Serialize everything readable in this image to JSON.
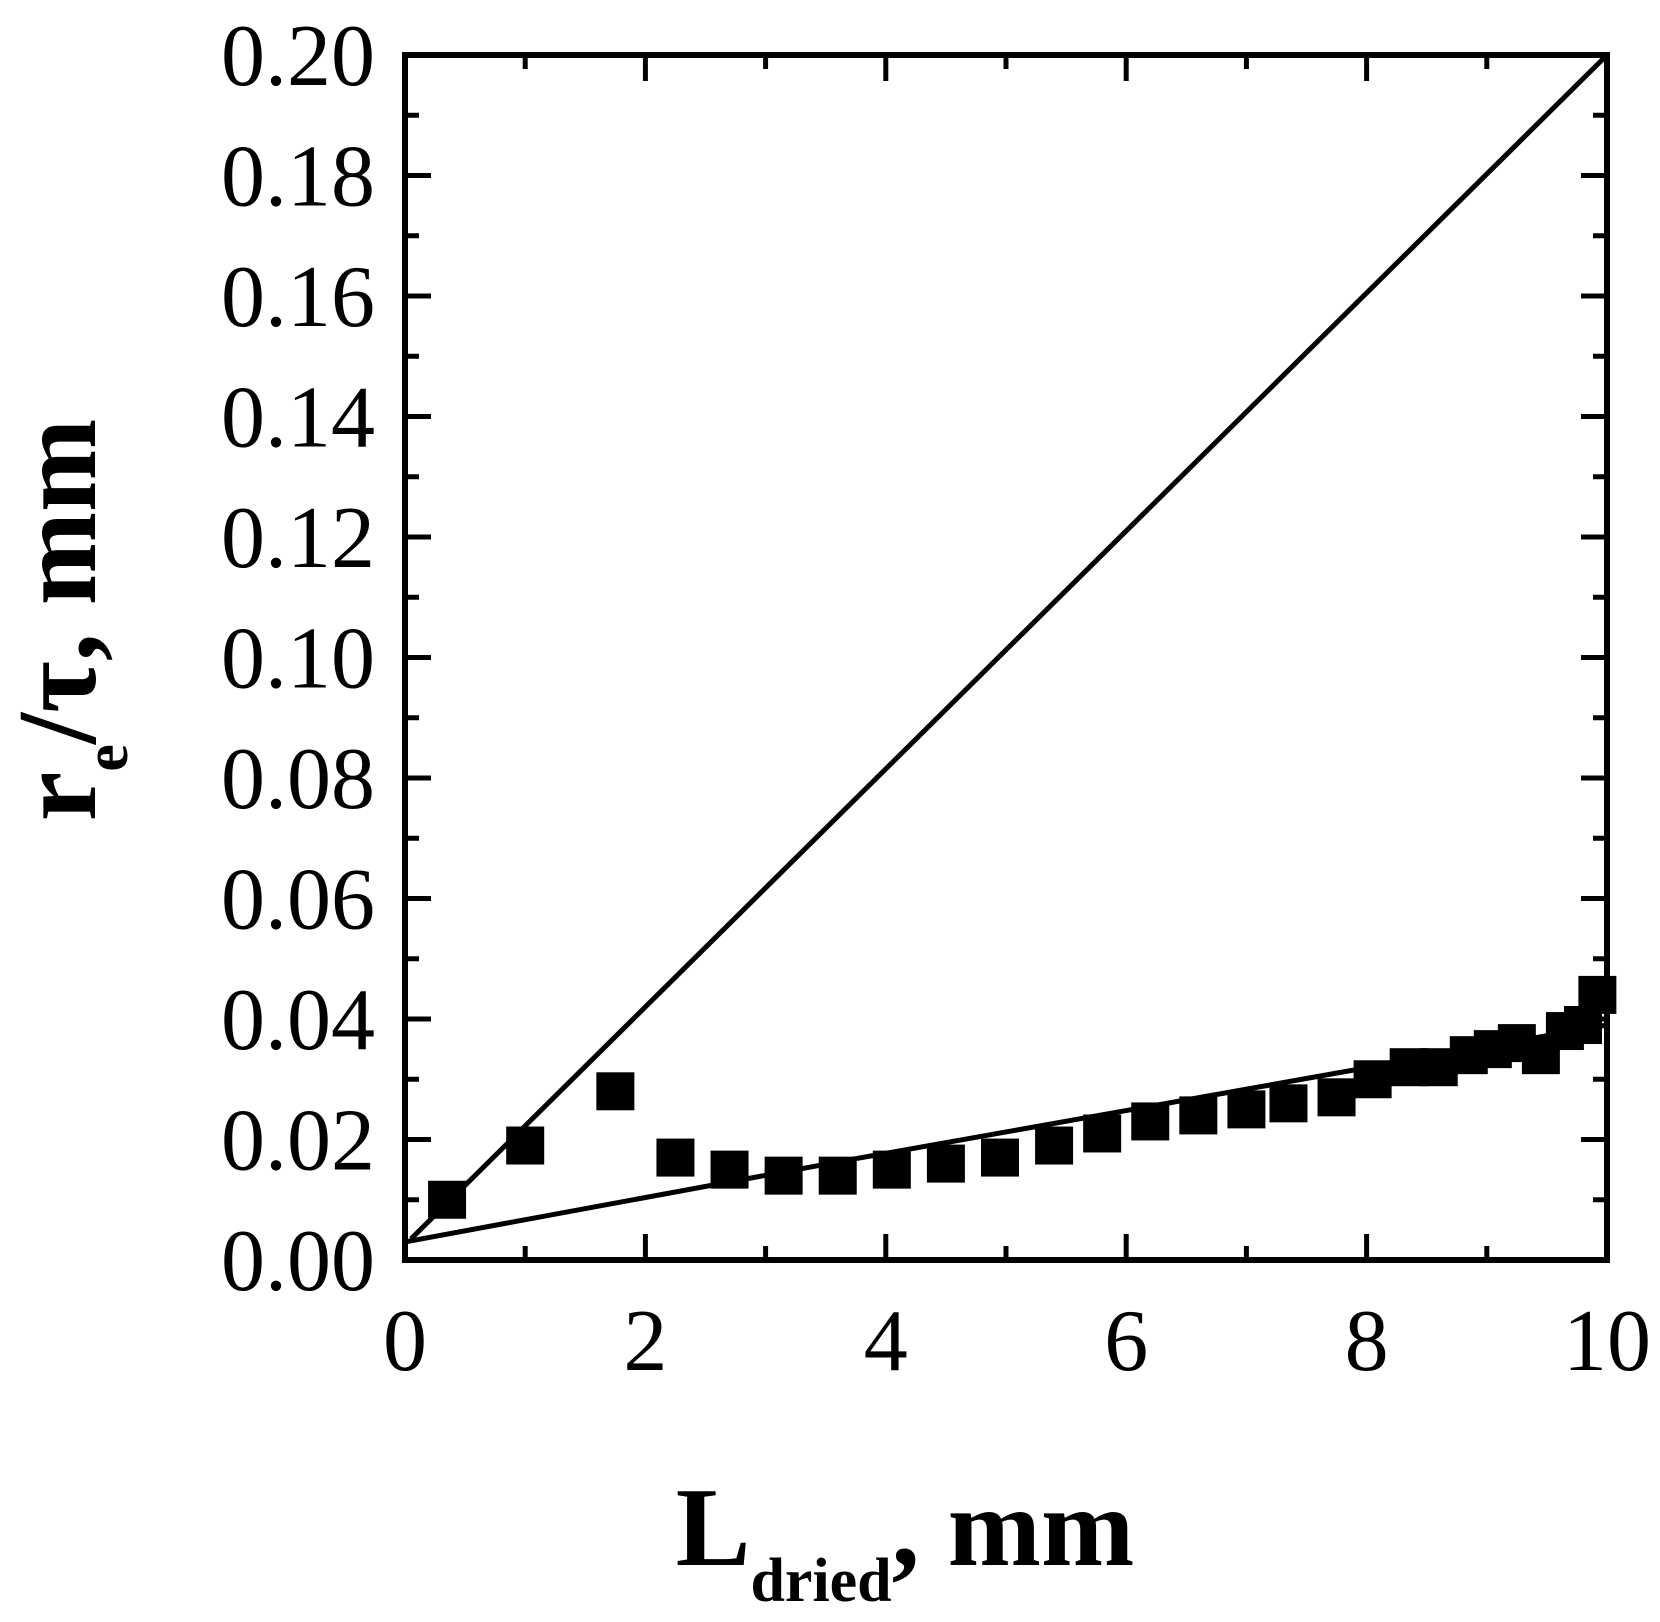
{
  "chart_data": {
    "type": "scatter",
    "xlim": [
      0,
      10
    ],
    "ylim": [
      0,
      0.2
    ],
    "x_ticks": [
      "0",
      "2",
      "4",
      "6",
      "8",
      "10"
    ],
    "y_ticks": [
      "0.00",
      "0.02",
      "0.04",
      "0.06",
      "0.08",
      "0.10",
      "0.12",
      "0.14",
      "0.16",
      "0.18",
      "0.20"
    ],
    "xlabel": {
      "main": "L",
      "sub": "dried",
      "suffix": ", mm"
    },
    "ylabel": {
      "main": "r",
      "sub": "e",
      "suffix": "/τ, mm"
    },
    "grid": false,
    "series": [
      {
        "type": "scatter",
        "marker": "square",
        "color": "#000000",
        "x": [
          0.35,
          1.0,
          1.75,
          2.25,
          2.7,
          3.15,
          3.6,
          4.05,
          4.5,
          4.95,
          5.4,
          5.8,
          6.2,
          6.6,
          7.0,
          7.35,
          7.75,
          8.05,
          8.35,
          8.6,
          8.85,
          9.05,
          9.25,
          9.45,
          9.65,
          9.8,
          9.92
        ],
        "y": [
          0.01,
          0.019,
          0.028,
          0.017,
          0.015,
          0.014,
          0.014,
          0.015,
          0.016,
          0.017,
          0.019,
          0.021,
          0.023,
          0.024,
          0.025,
          0.026,
          0.027,
          0.03,
          0.032,
          0.032,
          0.034,
          0.035,
          0.036,
          0.034,
          0.038,
          0.039,
          0.044
        ]
      },
      {
        "type": "line",
        "color": "#000000",
        "x": [
          0.05,
          10.0
        ],
        "y": [
          0.0035,
          0.2
        ]
      },
      {
        "type": "line",
        "color": "#000000",
        "x": [
          0.0,
          3.8,
          10.0
        ],
        "y": [
          0.003,
          0.017,
          0.039
        ]
      }
    ]
  }
}
